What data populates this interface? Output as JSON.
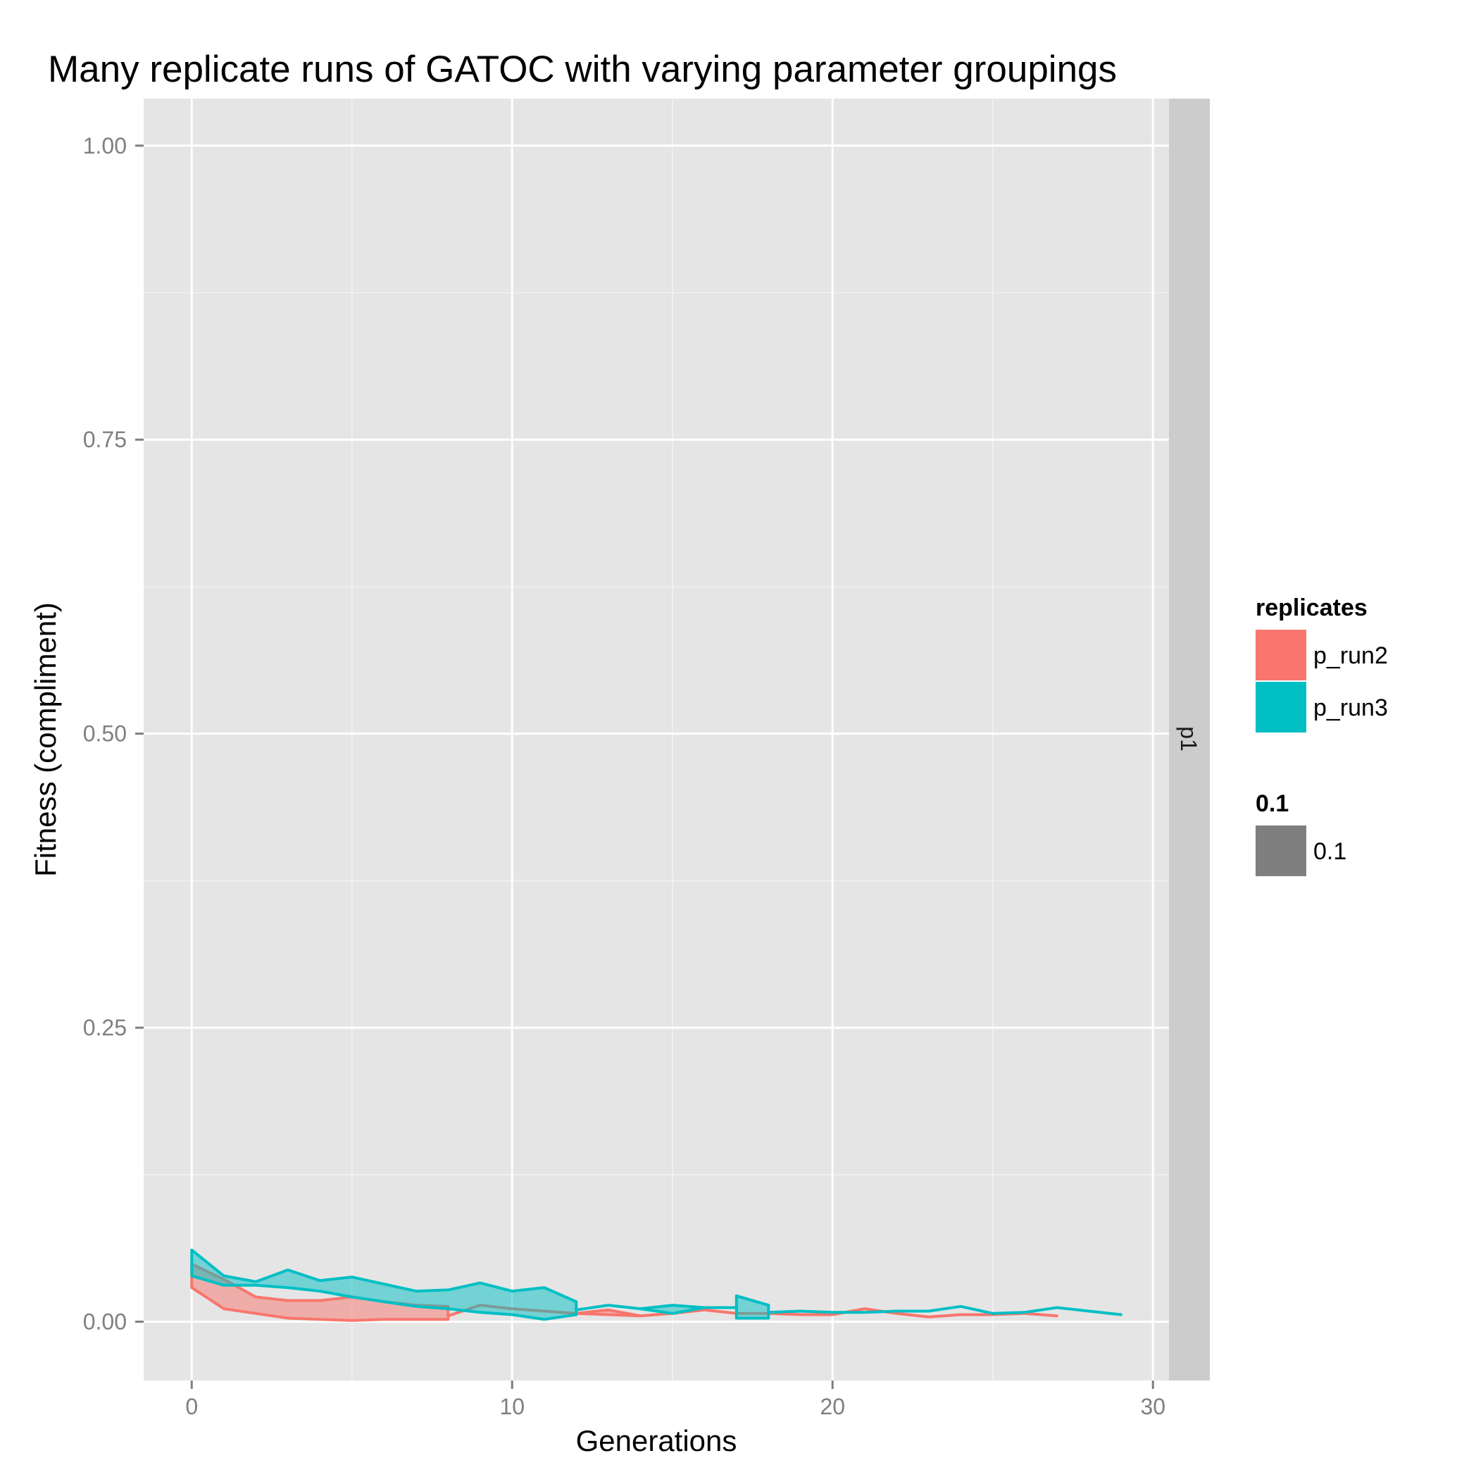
{
  "chart_data": {
    "type": "area",
    "title": "Many replicate runs of GATOC with varying parameter groupings",
    "xlabel": "Generations",
    "ylabel": "Fitness (compliment)",
    "xlim": [
      -1.5,
      30.5
    ],
    "ylim": [
      -0.05,
      1.04
    ],
    "x_ticks": [
      0,
      10,
      20,
      30
    ],
    "x_tick_labels": [
      "0",
      "10",
      "20",
      "30"
    ],
    "y_ticks": [
      0.0,
      0.25,
      0.5,
      0.75,
      1.0
    ],
    "y_tick_labels": [
      "0.00",
      "0.25",
      "0.50",
      "0.75",
      "1.00"
    ],
    "grid": true,
    "facet_strip": "p1",
    "legend_position": "right",
    "legends": [
      {
        "title": "replicates",
        "entries": [
          {
            "label": "p_run2",
            "color": "#F8766D"
          },
          {
            "label": "p_run3",
            "color": "#00BFC4"
          }
        ]
      },
      {
        "title": "0.1",
        "entries": [
          {
            "label": "0.1",
            "color": "#7f7f7f"
          }
        ]
      }
    ],
    "series": [
      {
        "name": "p_run2",
        "color": "#F8766D",
        "segments": [
          {
            "x": [
              0,
              1,
              2,
              3,
              4,
              5,
              6,
              7,
              8
            ],
            "lower": [
              0.029,
              0.011,
              0.007,
              0.003,
              0.002,
              0.001,
              0.002,
              0.002,
              0.002
            ],
            "upper": [
              0.049,
              0.036,
              0.021,
              0.018,
              0.018,
              0.021,
              0.017,
              0.014,
              0.013
            ]
          },
          {
            "x": [
              8,
              9,
              10,
              11,
              12,
              13,
              14,
              15,
              16,
              17,
              18,
              19,
              20,
              21,
              22,
              23,
              24,
              25,
              26,
              27
            ],
            "lower": [
              0.005,
              0.014,
              0.011,
              0.009,
              0.007,
              0.006,
              0.005,
              0.007,
              0.01,
              0.007,
              0.007,
              0.006,
              0.006,
              0.011,
              0.007,
              0.004,
              0.006,
              0.006,
              0.007,
              0.005
            ],
            "upper": [
              0.005,
              0.014,
              0.011,
              0.009,
              0.007,
              0.01,
              0.005,
              0.007,
              0.01,
              0.007,
              0.007,
              0.006,
              0.006,
              0.011,
              0.007,
              0.004,
              0.006,
              0.006,
              0.007,
              0.005
            ]
          }
        ]
      },
      {
        "name": "p_run3",
        "color": "#00BFC4",
        "segments": [
          {
            "x": [
              0,
              1,
              2,
              3,
              4,
              5,
              6,
              7,
              8,
              9,
              10,
              11,
              12
            ],
            "lower": [
              0.039,
              0.031,
              0.031,
              0.029,
              0.026,
              0.021,
              0.017,
              0.013,
              0.011,
              0.008,
              0.006,
              0.002,
              0.006
            ],
            "upper": [
              0.061,
              0.039,
              0.034,
              0.044,
              0.035,
              0.038,
              0.032,
              0.026,
              0.027,
              0.033,
              0.026,
              0.029,
              0.017
            ]
          },
          {
            "x": [
              12,
              13,
              14,
              15,
              16,
              17
            ],
            "lower": [
              0.01,
              0.014,
              0.011,
              0.007,
              0.012,
              0.012
            ],
            "upper": [
              0.01,
              0.014,
              0.011,
              0.014,
              0.012,
              0.012
            ]
          },
          {
            "x": [
              17,
              18
            ],
            "lower": [
              0.003,
              0.003
            ],
            "upper": [
              0.022,
              0.014
            ]
          },
          {
            "x": [
              18,
              19,
              20,
              21,
              22,
              23,
              24,
              25,
              26,
              27,
              28,
              29
            ],
            "lower": [
              0.008,
              0.009,
              0.008,
              0.008,
              0.009,
              0.009,
              0.013,
              0.007,
              0.008,
              0.012,
              0.009,
              0.006
            ],
            "upper": [
              0.008,
              0.009,
              0.008,
              0.008,
              0.009,
              0.009,
              0.013,
              0.007,
              0.008,
              0.012,
              0.009,
              0.006
            ]
          }
        ]
      }
    ]
  }
}
